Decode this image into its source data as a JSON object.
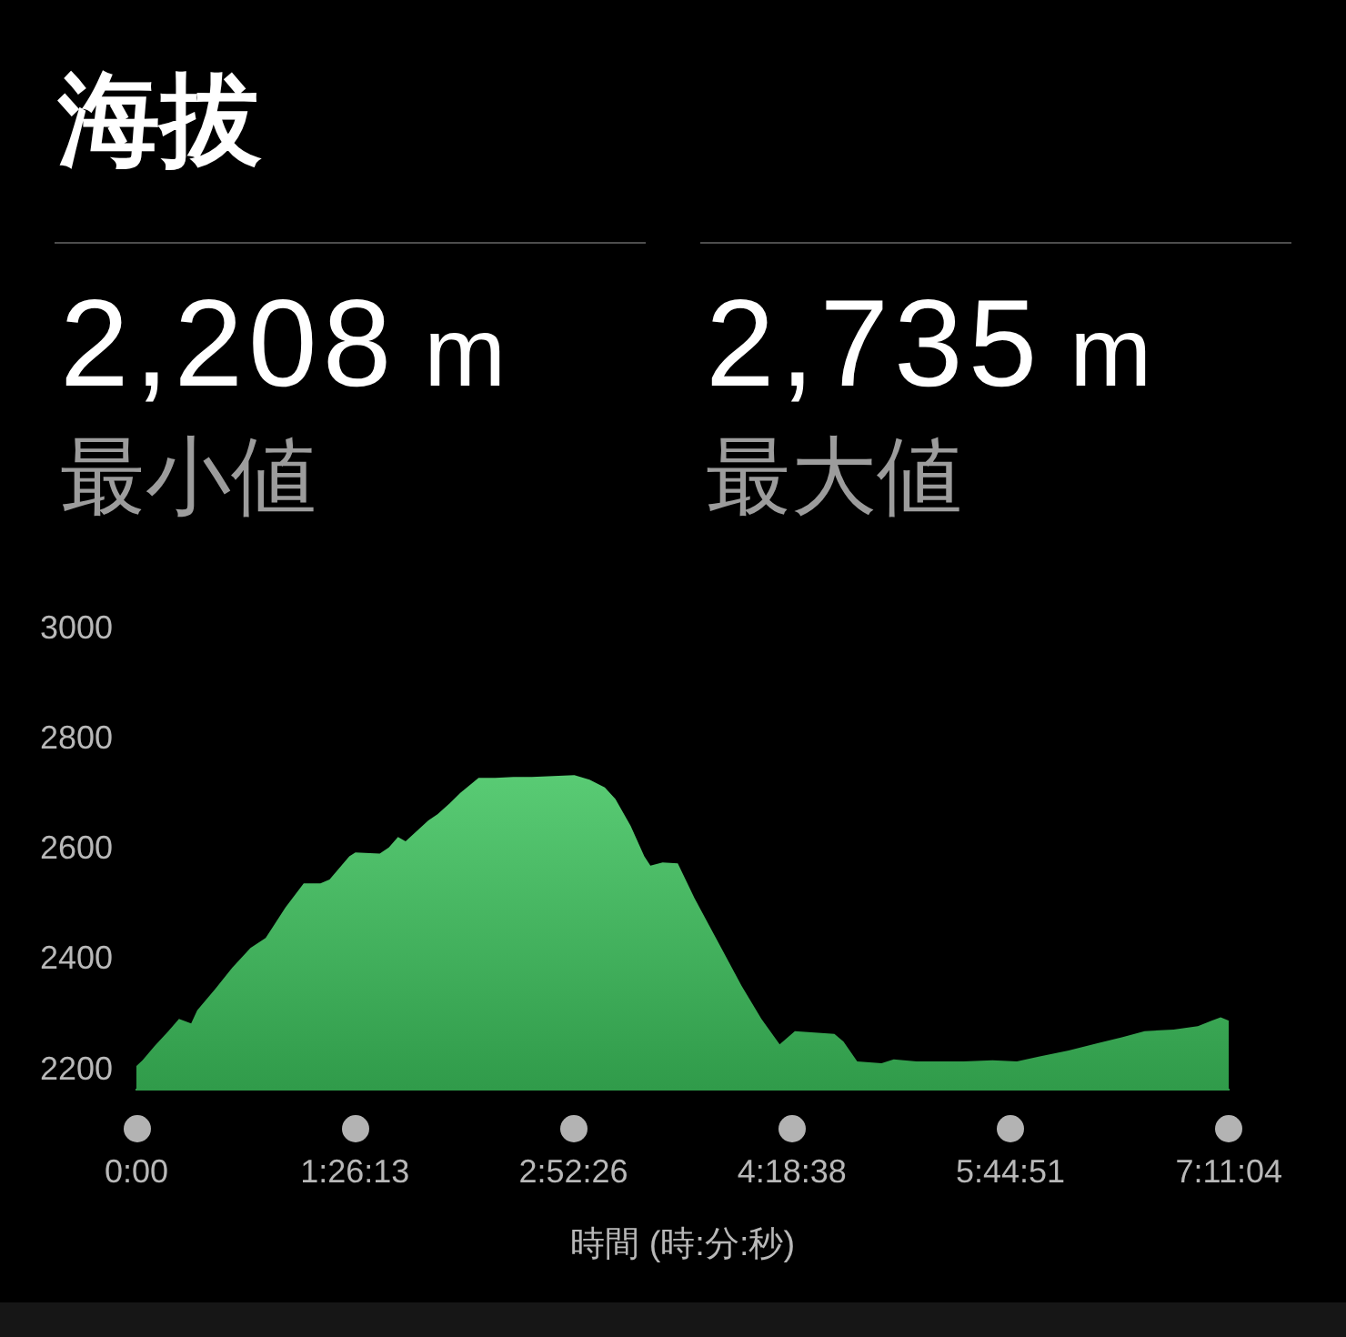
{
  "chart_data": {
    "type": "area",
    "title": "海拔",
    "annotations": [
      "2,208 m",
      "最小値",
      "2,735 m",
      "最大値"
    ],
    "xlabel": "時間 (時:分:秒)",
    "x": [
      0,
      0.04,
      0.12,
      0.21,
      0.28,
      0.36,
      0.4,
      0.52,
      0.63,
      0.75,
      0.85,
      0.98,
      1.1,
      1.21,
      1.27,
      1.4,
      1.44,
      1.6,
      1.66,
      1.72,
      1.77,
      1.92,
      1.98,
      2.06,
      2.13,
      2.25,
      2.36,
      2.48,
      2.6,
      2.88,
      2.98,
      3.08,
      3.15,
      3.25,
      3.34,
      3.38,
      3.46,
      3.56,
      3.67,
      3.83,
      3.98,
      4.11,
      4.23,
      4.33,
      4.59,
      4.65,
      4.74,
      4.9,
      4.98,
      5.13,
      5.44,
      5.63,
      5.79,
      5.94,
      6.13,
      6.32,
      6.48,
      6.63,
      6.82,
      6.98,
      7.07,
      7.13,
      7.1844
    ],
    "values": [
      2208,
      2218,
      2244,
      2271,
      2293,
      2285,
      2309,
      2348,
      2386,
      2422,
      2440,
      2495,
      2539,
      2539,
      2546,
      2588,
      2595,
      2593,
      2604,
      2623,
      2615,
      2653,
      2664,
      2684,
      2703,
      2730,
      2730,
      2732,
      2732,
      2735,
      2727,
      2713,
      2692,
      2643,
      2588,
      2571,
      2577,
      2575,
      2512,
      2430,
      2353,
      2293,
      2247,
      2271,
      2266,
      2252,
      2216,
      2213,
      2220,
      2216,
      2216,
      2218,
      2216,
      2225,
      2236,
      2249,
      2260,
      2271,
      2274,
      2280,
      2290,
      2296,
      2290
    ],
    "color": "#3cc25c",
    "marker": "none",
    "xlim": [
      0,
      7.1844
    ],
    "xticks": [
      {
        "value": 0,
        "label": "0:00"
      },
      {
        "value": 1.4369,
        "label": "1:26:13"
      },
      {
        "value": 2.8739,
        "label": "2:52:26"
      },
      {
        "value": 4.3106,
        "label": "4:18:38"
      },
      {
        "value": 5.7475,
        "label": "5:44:51"
      },
      {
        "value": 7.1844,
        "label": "7:11:04"
      }
    ],
    "ylim": [
      2165,
      3000
    ],
    "yticks": [
      2200,
      2400,
      2600,
      2800,
      3000
    ]
  }
}
